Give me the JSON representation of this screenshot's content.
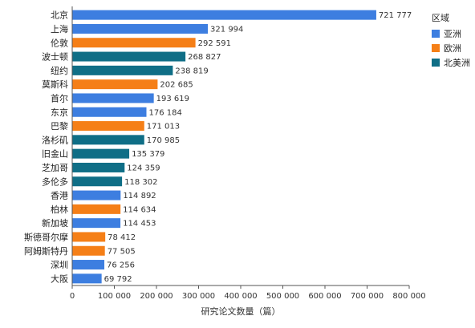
{
  "chart_data": {
    "type": "bar",
    "orientation": "horizontal",
    "categories": [
      "北京",
      "上海",
      "伦敦",
      "波士顿",
      "纽约",
      "莫斯科",
      "首尔",
      "东京",
      "巴黎",
      "洛杉矶",
      "旧金山",
      "芝加哥",
      "多伦多",
      "香港",
      "柏林",
      "新加坡",
      "斯德哥尔摩",
      "阿姆斯特丹",
      "深圳",
      "大阪"
    ],
    "values": [
      721777,
      321994,
      292591,
      268827,
      238819,
      202685,
      193619,
      176184,
      171013,
      170985,
      135379,
      124359,
      118302,
      114892,
      114634,
      114453,
      78412,
      77505,
      76256,
      69792
    ],
    "value_labels": [
      "721 777",
      "321 994",
      "292 591",
      "268 827",
      "238 819",
      "202 685",
      "193 619",
      "176 184",
      "171 013",
      "170 985",
      "135 379",
      "124 359",
      "118 302",
      "114 892",
      "114 634",
      "114 453",
      "78 412",
      "77 505",
      "76 256",
      "69 792"
    ],
    "regions": [
      "亚洲",
      "亚洲",
      "欧洲",
      "北美洲",
      "北美洲",
      "欧洲",
      "亚洲",
      "亚洲",
      "欧洲",
      "北美洲",
      "北美洲",
      "北美洲",
      "北美洲",
      "亚洲",
      "欧洲",
      "亚洲",
      "欧洲",
      "欧洲",
      "亚洲",
      "亚洲"
    ],
    "xlabel": "研究论文数量（篇）",
    "ylabel": "",
    "xlim": [
      0,
      800000
    ],
    "xticks": [
      0,
      100000,
      200000,
      300000,
      400000,
      500000,
      600000,
      700000,
      800000
    ],
    "xtick_labels": [
      "0",
      "100 000",
      "200 000",
      "300 000",
      "400 000",
      "500 000",
      "600 000",
      "700 000",
      "800 000"
    ],
    "grid": false,
    "legend": {
      "title": "区域",
      "position": "right",
      "entries": [
        {
          "name": "亚洲",
          "color": "#3d7ee0"
        },
        {
          "name": "欧洲",
          "color": "#f57f17"
        },
        {
          "name": "北美洲",
          "color": "#0f6e86"
        }
      ]
    }
  }
}
